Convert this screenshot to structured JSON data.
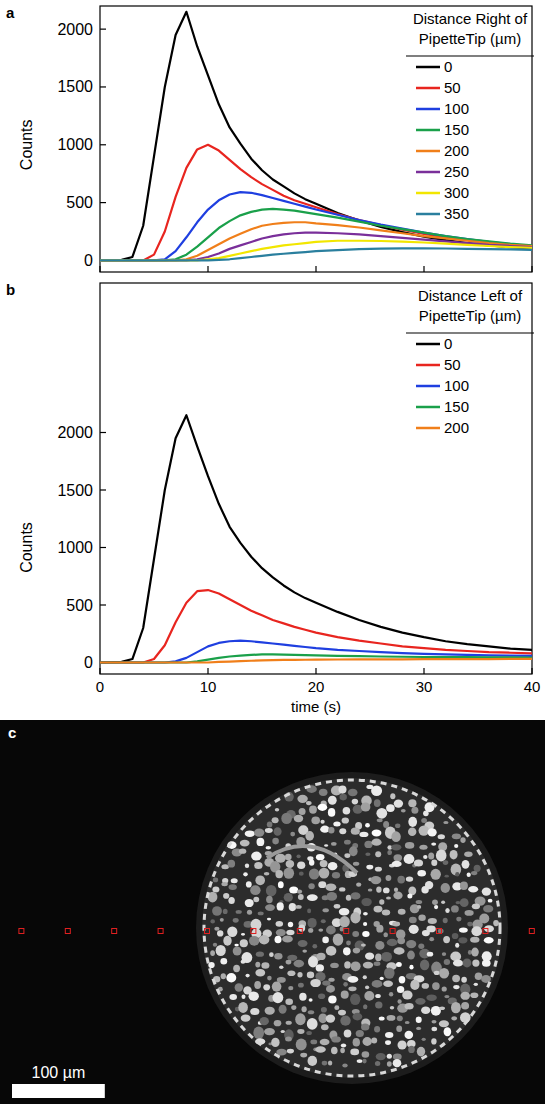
{
  "chart_data": [
    {
      "type": "line",
      "panel_label": "a",
      "y_label": "Counts",
      "legend_title": "Distance Right of PipetteTip (µm)",
      "legend": "top-right",
      "tick_labels": "y",
      "grid": false,
      "xlim": [
        0,
        40
      ],
      "xticks": [
        0,
        10,
        20,
        30,
        40
      ],
      "ylim": [
        -100,
        2200
      ],
      "yticks": [
        0,
        500,
        1000,
        1500,
        2000
      ],
      "x": [
        0,
        2,
        3,
        4,
        5,
        6,
        7,
        8,
        9,
        10,
        11,
        12,
        13,
        14,
        15,
        16,
        17,
        18,
        19,
        20,
        22,
        24,
        26,
        28,
        30,
        32,
        34,
        36,
        38,
        40
      ],
      "series": [
        {
          "name": "0",
          "color": "#000000",
          "values": [
            0,
            5,
            30,
            300,
            900,
            1500,
            1950,
            2150,
            1850,
            1600,
            1350,
            1150,
            1010,
            880,
            780,
            700,
            640,
            580,
            530,
            490,
            410,
            345,
            290,
            245,
            205,
            175,
            150,
            130,
            115,
            105
          ]
        },
        {
          "name": "50",
          "color": "#e8251f",
          "values": [
            0,
            0,
            0,
            0,
            50,
            250,
            550,
            800,
            960,
            1000,
            950,
            870,
            790,
            720,
            660,
            610,
            560,
            520,
            490,
            460,
            400,
            350,
            305,
            265,
            230,
            200,
            175,
            150,
            130,
            115
          ]
        },
        {
          "name": "100",
          "color": "#1f3fe0",
          "values": [
            0,
            0,
            0,
            0,
            0,
            10,
            80,
            200,
            330,
            440,
            520,
            570,
            590,
            585,
            565,
            540,
            515,
            490,
            465,
            440,
            395,
            350,
            310,
            275,
            240,
            210,
            185,
            160,
            140,
            125
          ]
        },
        {
          "name": "150",
          "color": "#1aa04a",
          "values": [
            0,
            0,
            0,
            0,
            0,
            0,
            10,
            50,
            120,
            200,
            280,
            340,
            390,
            420,
            440,
            445,
            440,
            430,
            415,
            400,
            370,
            335,
            300,
            270,
            240,
            210,
            185,
            165,
            145,
            130
          ]
        },
        {
          "name": "200",
          "color": "#f07f1a",
          "values": [
            0,
            0,
            0,
            0,
            0,
            0,
            0,
            10,
            40,
            90,
            140,
            190,
            230,
            270,
            300,
            315,
            325,
            330,
            330,
            320,
            305,
            285,
            260,
            235,
            210,
            190,
            170,
            150,
            135,
            125
          ]
        },
        {
          "name": "250",
          "color": "#7a2f9a",
          "values": [
            0,
            0,
            0,
            0,
            0,
            0,
            0,
            0,
            10,
            30,
            60,
            100,
            130,
            160,
            190,
            210,
            225,
            235,
            240,
            240,
            235,
            225,
            210,
            195,
            180,
            165,
            150,
            135,
            125,
            115
          ]
        },
        {
          "name": "300",
          "color": "#f2e600",
          "values": [
            0,
            0,
            0,
            0,
            0,
            0,
            0,
            0,
            0,
            10,
            20,
            40,
            60,
            80,
            100,
            115,
            130,
            140,
            150,
            160,
            170,
            170,
            168,
            162,
            155,
            145,
            135,
            125,
            115,
            108
          ]
        },
        {
          "name": "350",
          "color": "#2a7f9e",
          "values": [
            0,
            0,
            0,
            0,
            0,
            0,
            0,
            0,
            0,
            0,
            5,
            10,
            20,
            30,
            40,
            50,
            58,
            65,
            72,
            80,
            90,
            97,
            102,
            105,
            105,
            103,
            100,
            98,
            95,
            92
          ]
        }
      ]
    },
    {
      "type": "line",
      "panel_label": "b",
      "y_label": "Counts",
      "x_label": "time (s)",
      "legend_title": "Distance Left of PipetteTip (µm)",
      "legend": "top-right",
      "grid": false,
      "xlim": [
        0,
        40
      ],
      "xticks": [
        0,
        10,
        20,
        30,
        40
      ],
      "ylim": [
        -100,
        3300
      ],
      "yticks": [
        0,
        500,
        1000,
        1500,
        2000
      ],
      "x": [
        0,
        2,
        3,
        4,
        5,
        6,
        7,
        8,
        9,
        10,
        11,
        12,
        13,
        14,
        15,
        16,
        17,
        18,
        19,
        20,
        22,
        24,
        26,
        28,
        30,
        32,
        34,
        36,
        38,
        40
      ],
      "series": [
        {
          "name": "0",
          "color": "#000000",
          "values": [
            0,
            5,
            30,
            300,
            900,
            1500,
            1950,
            2150,
            1880,
            1620,
            1380,
            1180,
            1040,
            920,
            820,
            740,
            670,
            610,
            560,
            520,
            440,
            370,
            310,
            260,
            220,
            185,
            160,
            140,
            120,
            110
          ]
        },
        {
          "name": "50",
          "color": "#e8251f",
          "values": [
            0,
            0,
            0,
            0,
            30,
            150,
            350,
            520,
            620,
            630,
            600,
            550,
            500,
            450,
            410,
            370,
            340,
            310,
            285,
            260,
            220,
            190,
            165,
            140,
            125,
            110,
            100,
            90,
            85,
            80
          ]
        },
        {
          "name": "100",
          "color": "#1f3fe0",
          "values": [
            0,
            0,
            0,
            0,
            0,
            0,
            10,
            40,
            90,
            140,
            170,
            185,
            190,
            185,
            175,
            165,
            155,
            145,
            135,
            125,
            110,
            100,
            90,
            82,
            75,
            70,
            66,
            62,
            60,
            58
          ]
        },
        {
          "name": "150",
          "color": "#1aa04a",
          "values": [
            0,
            0,
            0,
            0,
            0,
            0,
            0,
            0,
            10,
            25,
            40,
            52,
            60,
            66,
            70,
            70,
            68,
            66,
            64,
            62,
            58,
            55,
            52,
            50,
            48,
            47,
            46,
            45,
            44,
            43
          ]
        },
        {
          "name": "200",
          "color": "#f07f1a",
          "values": [
            0,
            0,
            0,
            0,
            0,
            0,
            0,
            0,
            0,
            0,
            5,
            8,
            12,
            15,
            18,
            20,
            22,
            23,
            24,
            25,
            26,
            27,
            28,
            28,
            29,
            30,
            30,
            30,
            31,
            31
          ]
        }
      ]
    }
  ],
  "image": {
    "panel_label": "c",
    "scale_bar": {
      "value": 100,
      "label": "100 µm"
    },
    "positions": [
      -200,
      -150,
      -100,
      -50,
      0,
      50,
      100,
      150,
      200,
      250,
      300,
      350
    ]
  }
}
